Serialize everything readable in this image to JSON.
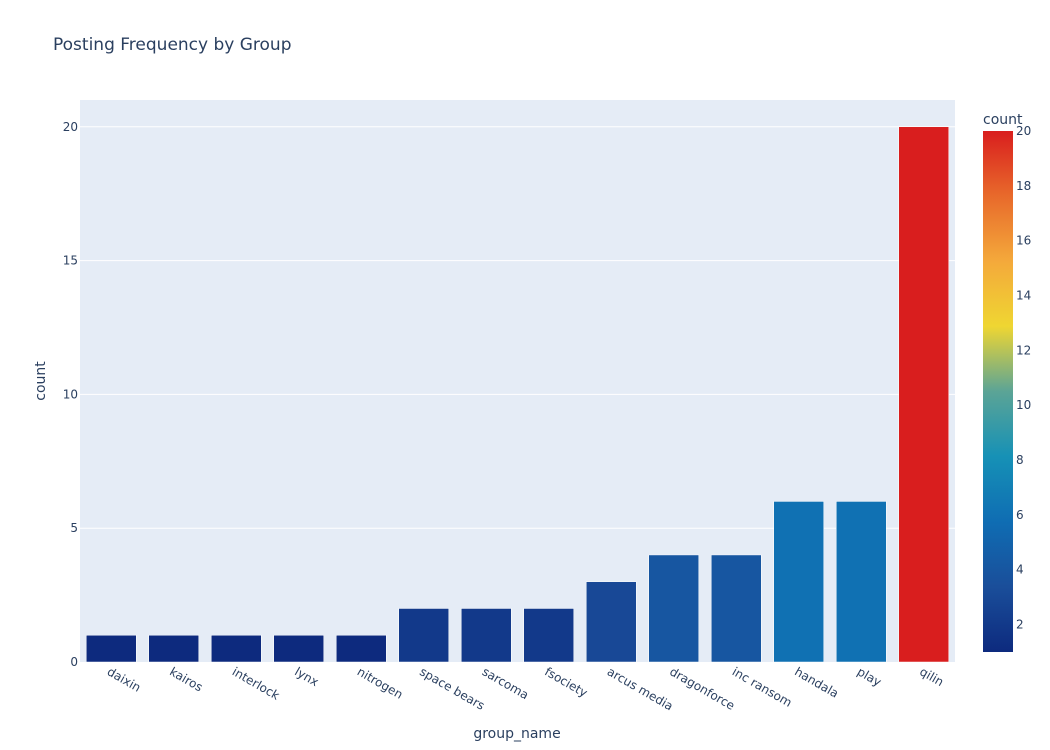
{
  "chart_data": {
    "type": "bar",
    "title": "Posting Frequency by Group",
    "xlabel": "group_name",
    "ylabel": "count",
    "categories": [
      "daixin",
      "kairos",
      "interlock",
      "lynx",
      "nitrogen",
      "space bears",
      "sarcoma",
      "fsociety",
      "arcus media",
      "dragonforce",
      "inc ransom",
      "handala",
      "play",
      "qilin"
    ],
    "values": [
      1,
      1,
      1,
      1,
      1,
      2,
      2,
      2,
      3,
      4,
      4,
      6,
      6,
      20
    ],
    "ylim": [
      0,
      21
    ],
    "yticks": [
      0,
      5,
      10,
      15,
      20
    ],
    "grid": true,
    "legend": "none",
    "colorbar": {
      "title": "count",
      "range": [
        1,
        20
      ],
      "ticks": [
        2,
        4,
        6,
        8,
        10,
        12,
        14,
        16,
        18,
        20
      ],
      "colorscale": [
        "#0d2a7e",
        "#1a4e9a",
        "#0f6db3",
        "#1691b6",
        "#5ba496",
        "#efd632",
        "#f4a93b",
        "#e86a2b",
        "#d91e1e"
      ]
    },
    "colors": {
      "plot_bg": "#e5ecf6",
      "grid": "#ffffff",
      "text": "#2a3f5f"
    }
  }
}
